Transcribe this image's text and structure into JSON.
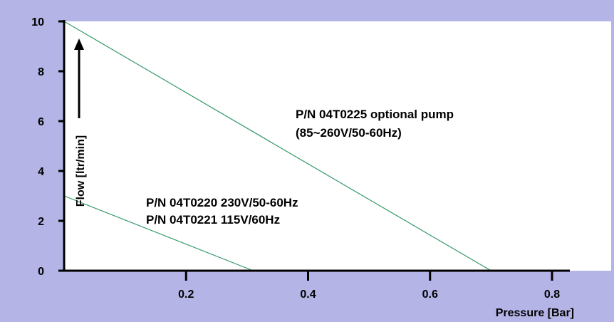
{
  "chart_data": {
    "type": "line",
    "title": "",
    "xlabel": "Pressure [Bar]",
    "ylabel": "Flow [ltr/min]",
    "xlim": [
      0,
      0.8
    ],
    "ylim": [
      0,
      10
    ],
    "x_ticks": [
      "0.2",
      "0.4",
      "0.6",
      "0.8"
    ],
    "x_tick_values": [
      0.2,
      0.4,
      0.6,
      0.8
    ],
    "y_ticks": [
      "0",
      "2",
      "4",
      "6",
      "8",
      "10"
    ],
    "y_tick_values": [
      0,
      2,
      4,
      6,
      8,
      10
    ],
    "grid": false,
    "series": [
      {
        "name": "P/N 04T0225 optional pump (85~260V/50-60Hz)",
        "points": [
          [
            0,
            10
          ],
          [
            0.7,
            0
          ]
        ]
      },
      {
        "name": "P/N 04T0220 230V/50-60Hz / P/N 04T0221 115V/60Hz",
        "points": [
          [
            0,
            3
          ],
          [
            0.31,
            0
          ]
        ]
      }
    ],
    "annotations": [
      "P/N 04T0225 optional pump",
      "(85~260V/50-60Hz)",
      "P/N 04T0220 230V/50-60Hz",
      "P/N 04T0221 115V/60Hz"
    ],
    "colors": {
      "background": "#b4b4e6",
      "plot_area": "#ffffff",
      "line": "#339966",
      "axis": "#000000"
    }
  }
}
